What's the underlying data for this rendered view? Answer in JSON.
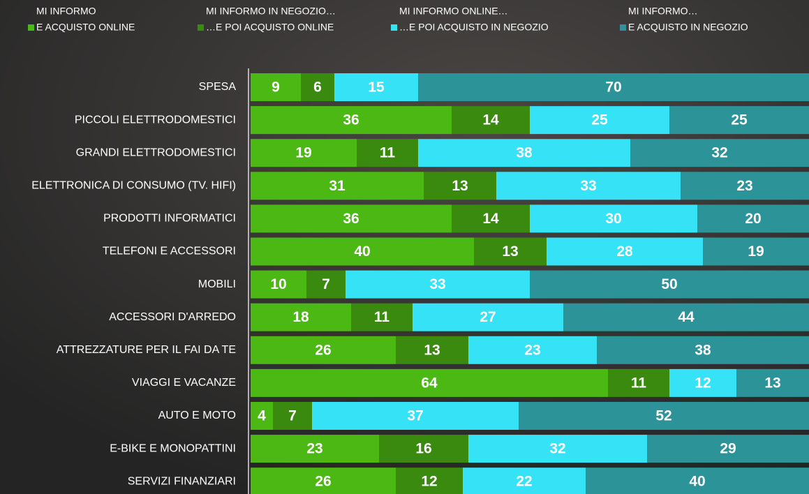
{
  "chart_data": {
    "type": "stacked_bar_horizontal",
    "categories": [
      "SPESA",
      "PICCOLI ELETTRODOMESTICI",
      "GRANDI ELETTRODOMESTICI",
      "ELETTRONICA DI CONSUMO (TV. HIFI)",
      "PRODOTTI INFORMATICI",
      "TELEFONI E ACCESSORI",
      "MOBILI",
      "ACCESSORI D'ARREDO",
      "ATTREZZATURE PER IL FAI DA TE",
      "VIAGGI E VACANZE",
      "AUTO E MOTO",
      "E-BIKE E MONOPATTINI",
      "SERVIZI FINANZIARI"
    ],
    "series": [
      {
        "group": "MI INFORMO",
        "name": "E ACQUISTO ONLINE",
        "color": "#4cb814",
        "values": [
          9,
          36,
          19,
          31,
          36,
          40,
          10,
          18,
          26,
          64,
          4,
          23,
          26
        ]
      },
      {
        "group": "MI INFORMO IN NEGOZIO…",
        "name": "…E POI ACQUISTO ONLINE",
        "color": "#3a8a10",
        "values": [
          6,
          14,
          11,
          13,
          14,
          13,
          7,
          11,
          13,
          11,
          7,
          16,
          12
        ]
      },
      {
        "group": "MI INFORMO ONLINE…",
        "name": "…E POI ACQUISTO IN NEGOZIO",
        "color": "#36e2f6",
        "values": [
          15,
          25,
          38,
          33,
          30,
          28,
          33,
          27,
          23,
          12,
          37,
          32,
          22
        ]
      },
      {
        "group": "MI INFORMO…",
        "name": "E ACQUISTO IN NEGOZIO",
        "color": "#2c9399",
        "values": [
          70,
          25,
          32,
          23,
          20,
          19,
          50,
          44,
          38,
          13,
          52,
          29,
          40
        ]
      }
    ],
    "xlim": [
      0,
      100
    ]
  }
}
